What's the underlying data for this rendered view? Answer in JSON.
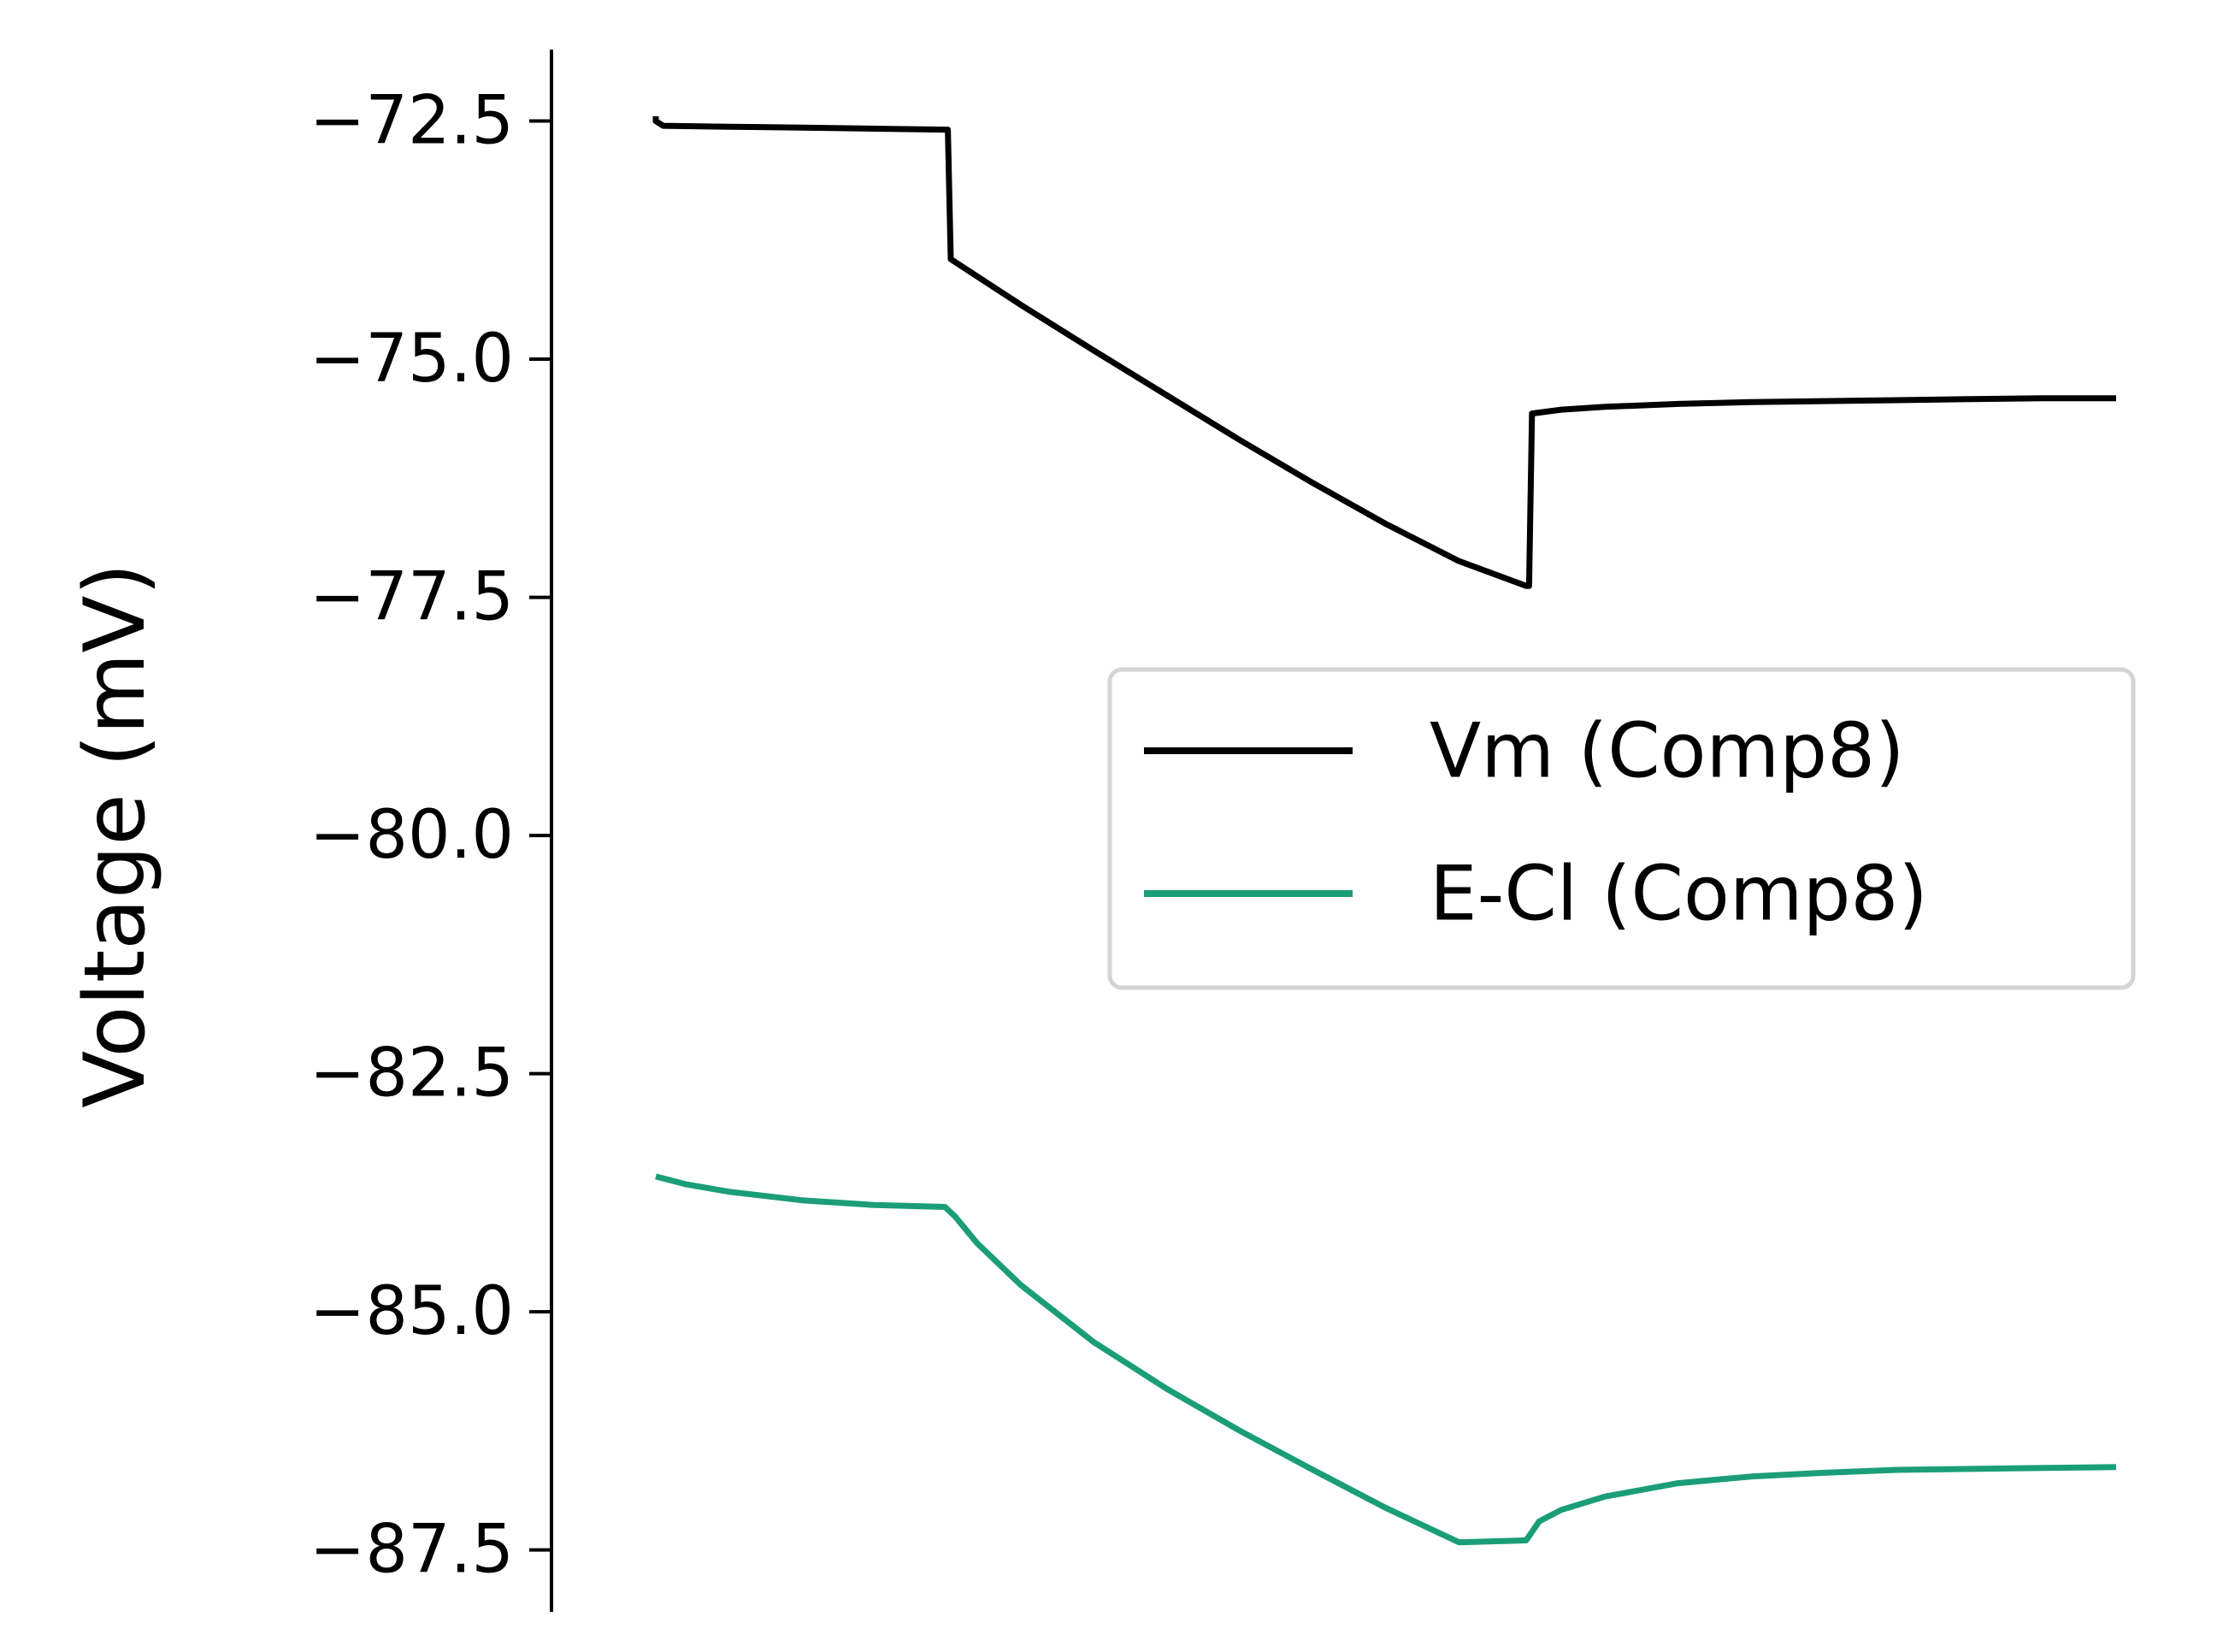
{
  "chart_data": {
    "type": "line",
    "ylabel": "Voltage (mV)",
    "ylim": [
      -88.15,
      -71.75
    ],
    "yticks": [
      -72.5,
      -75.0,
      -77.5,
      -80.0,
      -82.5,
      -85.0,
      -87.5
    ],
    "ytick_labels": [
      "−72.5",
      "−75.0",
      "−77.5",
      "−80.0",
      "−82.5",
      "−85.0",
      "−87.5"
    ],
    "xlim": [
      0,
      100
    ],
    "x_axis_visible": false,
    "grid": false,
    "legend": {
      "placement": "center-right"
    },
    "series": [
      {
        "name": "Vm (Comp8)",
        "color": "#000000",
        "x": [
          0,
          0,
          0.5,
          5,
          10,
          15,
          19.8,
          20,
          20.2,
          25,
          30,
          35,
          40,
          45,
          50,
          55,
          59.6,
          59.8,
          60,
          62,
          65,
          70,
          75,
          80,
          85,
          90,
          95,
          100
        ],
        "y": [
          -72.45,
          -72.5,
          -72.55,
          -72.56,
          -72.57,
          -72.58,
          -72.59,
          -72.59,
          -73.95,
          -74.43,
          -74.91,
          -75.38,
          -75.85,
          -76.3,
          -76.73,
          -77.12,
          -77.38,
          -77.38,
          -75.57,
          -75.53,
          -75.5,
          -75.47,
          -75.45,
          -75.44,
          -75.43,
          -75.42,
          -75.41,
          -75.41
        ]
      },
      {
        "name": "E-Cl (Comp8)",
        "color": "#1b9e77",
        "x": [
          0,
          2,
          5,
          10,
          15,
          19.8,
          20.5,
          22,
          25,
          30,
          35,
          40,
          45,
          50,
          55,
          59.6,
          60.5,
          62,
          65,
          70,
          75,
          80,
          85,
          90,
          95,
          100
        ],
        "y": [
          -83.58,
          -83.66,
          -83.74,
          -83.83,
          -83.88,
          -83.9,
          -84.0,
          -84.28,
          -84.72,
          -85.32,
          -85.81,
          -86.25,
          -86.66,
          -87.06,
          -87.42,
          -87.4,
          -87.2,
          -87.08,
          -86.94,
          -86.8,
          -86.73,
          -86.69,
          -86.66,
          -86.65,
          -86.64,
          -86.63
        ]
      }
    ]
  }
}
